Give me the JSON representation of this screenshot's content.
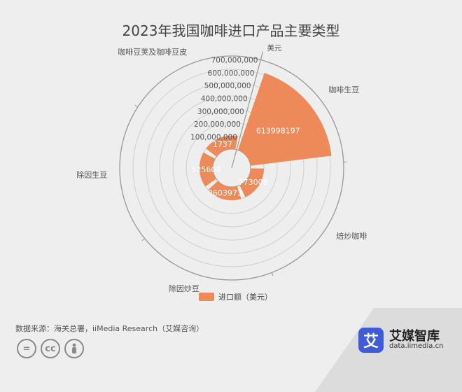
{
  "title": "2023年我国咖啡进口产品主要类型",
  "legend_label": "进口额（美元）",
  "source": "数据来源：海关总署，iiMedia Research（艾媒咨询）",
  "license_icons": [
    "=",
    "cc",
    "person"
  ],
  "brand": {
    "logo_char": "艾",
    "name": "艾媒智库",
    "url": "data.iimedia.cn"
  },
  "colors": {
    "bar": "#ee8a59",
    "grid": "#cfcfcf",
    "axis": "#999999",
    "text": "#555555"
  },
  "chart_data": {
    "type": "bar",
    "polar": true,
    "title": "2023年我国咖啡进口产品主要类型",
    "categories": [
      "咖啡生豆",
      "焙炒咖啡",
      "除因炒豆",
      "除因生豆",
      "咖啡豆荚及咖啡豆皮"
    ],
    "series": [
      {
        "name": "进口额（美元）",
        "values": [
          613998197,
          773008,
          8603973,
          525608,
          1737
        ],
        "labels": [
          "613998197",
          "773008",
          "8603973",
          "525608",
          "1737"
        ]
      }
    ],
    "radial_axis": {
      "unit_label": "美元",
      "min": 0,
      "max": 700000000,
      "ticks": [
        "100,000,000",
        "200,000,000",
        "300,000,000",
        "400,000,000",
        "500,000,000",
        "600,000,000",
        "700,000,000"
      ]
    },
    "legend_position": "bottom"
  }
}
